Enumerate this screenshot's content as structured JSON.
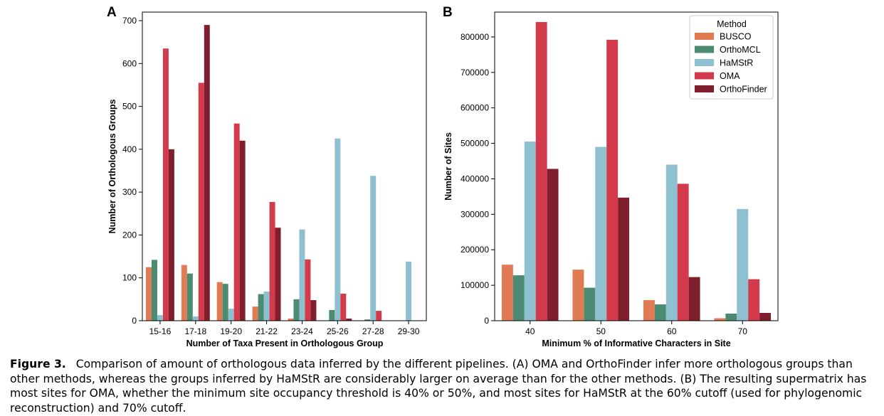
{
  "figure": {
    "panel_a_label": "A",
    "panel_b_label": "B"
  },
  "chart_data": [
    {
      "type": "bar",
      "panel": "A",
      "xlabel": "Number of Taxa Present in Orthologous Group",
      "ylabel": "Number of Orthologous Groups",
      "categories": [
        "15-16",
        "17-18",
        "19-20",
        "21-22",
        "23-24",
        "25-26",
        "27-28",
        "29-30"
      ],
      "ylim": [
        0,
        720
      ],
      "yticks": [
        0,
        100,
        200,
        300,
        400,
        500,
        600,
        700
      ],
      "yticklabels": [
        "0",
        "100",
        "200",
        "300",
        "400",
        "500",
        "600",
        "700"
      ],
      "series": [
        {
          "name": "BUSCO",
          "color": "#e07b54",
          "values": [
            125,
            130,
            90,
            33,
            5,
            0,
            0,
            0
          ]
        },
        {
          "name": "OrthoMCL",
          "color": "#4b8b72",
          "values": [
            142,
            110,
            86,
            62,
            50,
            25,
            3,
            0
          ]
        },
        {
          "name": "HaMStR",
          "color": "#8fc0cf",
          "values": [
            13,
            10,
            28,
            68,
            213,
            425,
            338,
            138
          ]
        },
        {
          "name": "OMA",
          "color": "#d33a4c",
          "values": [
            635,
            555,
            460,
            277,
            143,
            63,
            23,
            0
          ]
        },
        {
          "name": "OrthoFinder",
          "color": "#7f1f2d",
          "values": [
            400,
            690,
            420,
            217,
            48,
            5,
            0,
            0
          ]
        }
      ],
      "grid": false,
      "legend": "none"
    },
    {
      "type": "bar",
      "panel": "B",
      "xlabel": "Minimum % of Informative Characters in Site",
      "ylabel": "Number of Sites",
      "categories": [
        "40",
        "50",
        "60",
        "70"
      ],
      "ylim": [
        0,
        870000
      ],
      "yticks": [
        0,
        100000,
        200000,
        300000,
        400000,
        500000,
        600000,
        700000,
        800000
      ],
      "yticklabels": [
        "0",
        "100000",
        "200000",
        "300000",
        "400000",
        "500000",
        "600000",
        "700000",
        "800000"
      ],
      "series": [
        {
          "name": "BUSCO",
          "color": "#e07b54",
          "values": [
            158000,
            144000,
            58000,
            7000
          ]
        },
        {
          "name": "OrthoMCL",
          "color": "#4b8b72",
          "values": [
            128000,
            93000,
            46000,
            20000
          ]
        },
        {
          "name": "HaMStR",
          "color": "#8fc0cf",
          "values": [
            505000,
            490000,
            440000,
            315000
          ]
        },
        {
          "name": "OMA",
          "color": "#d33a4c",
          "values": [
            842000,
            792000,
            386000,
            117000
          ]
        },
        {
          "name": "OrthoFinder",
          "color": "#7f1f2d",
          "values": [
            428000,
            347000,
            123000,
            22000
          ]
        }
      ],
      "grid": false,
      "legend": "top-right",
      "legend_title": "Method"
    }
  ],
  "caption": {
    "label": "Figure 3.",
    "text": "Comparison of amount of orthologous data inferred by the different pipelines. (A) OMA and OrthoFinder infer more orthologous groups than other methods, whereas the groups inferred by HaMStR are considerably larger on average than for the other methods. (B) The resulting supermatrix has most sites for OMA, whether the minimum site occupancy threshold is 40% or 50%, and most sites for HaMStR at the 60% cutoff (used for phylogenomic reconstruction) and 70% cutoff."
  }
}
